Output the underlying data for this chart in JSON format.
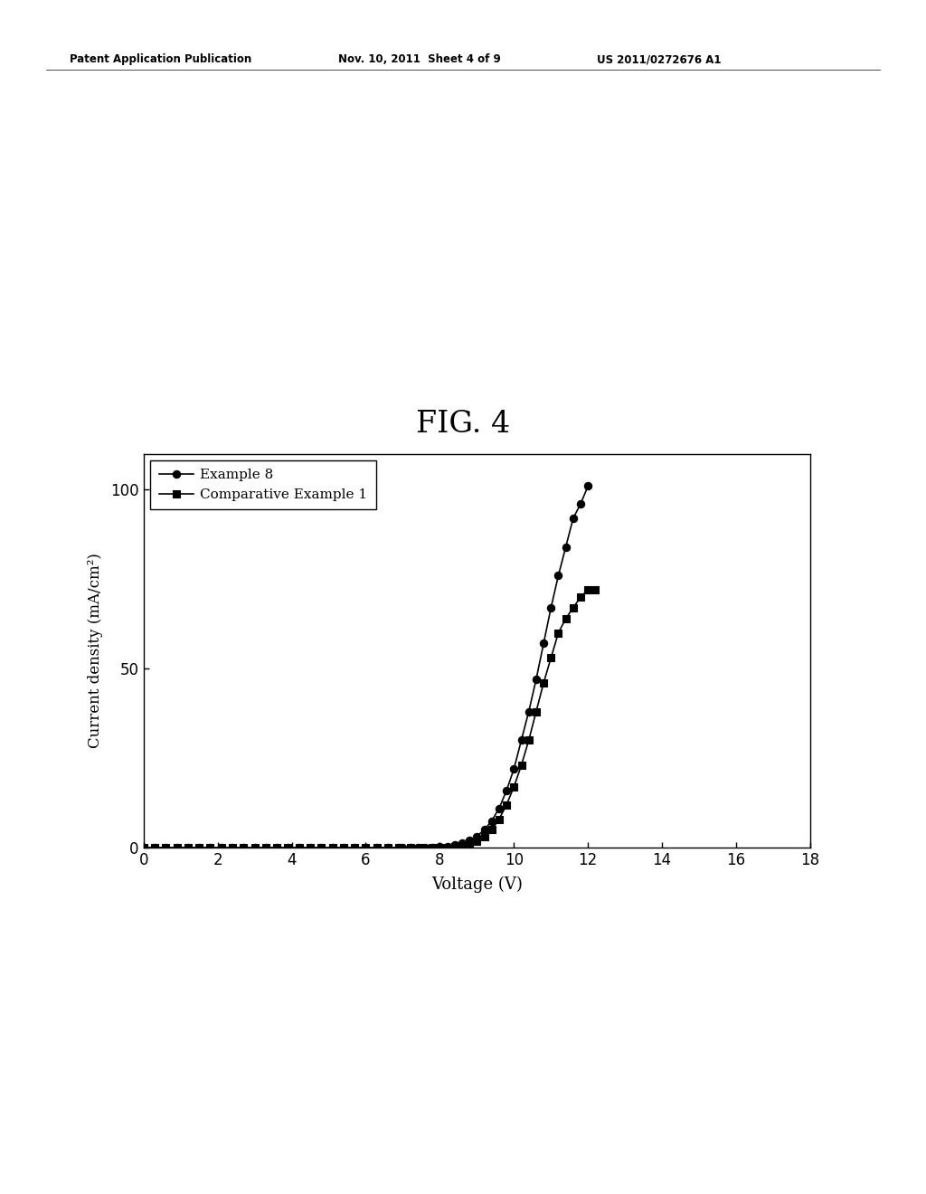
{
  "title": "FIG. 4",
  "xlabel": "Voltage (V)",
  "ylabel": "Current density (mA/cm²)",
  "xlim": [
    0,
    18
  ],
  "ylim": [
    0,
    110
  ],
  "xticks": [
    0,
    2,
    4,
    6,
    8,
    10,
    12,
    14,
    16,
    18
  ],
  "yticks": [
    0,
    50,
    100
  ],
  "background_color": "#ffffff",
  "header_left": "Patent Application Publication",
  "header_center": "Nov. 10, 2011  Sheet 4 of 9",
  "header_right": "US 2011/0272676 A1",
  "series": [
    {
      "label": "Example 8",
      "color": "#000000",
      "marker": "o",
      "x": [
        0.0,
        0.3,
        0.6,
        0.9,
        1.2,
        1.5,
        1.8,
        2.1,
        2.4,
        2.7,
        3.0,
        3.3,
        3.6,
        3.9,
        4.2,
        4.5,
        4.8,
        5.1,
        5.4,
        5.7,
        6.0,
        6.3,
        6.6,
        6.9,
        7.0,
        7.2,
        7.4,
        7.6,
        7.8,
        8.0,
        8.2,
        8.4,
        8.6,
        8.8,
        9.0,
        9.2,
        9.4,
        9.6,
        9.8,
        10.0,
        10.2,
        10.4,
        10.6,
        10.8,
        11.0,
        11.2,
        11.4,
        11.6,
        11.8,
        12.0
      ],
      "y": [
        0.0,
        0.0,
        0.0,
        0.0,
        0.0,
        0.0,
        0.0,
        0.0,
        0.0,
        0.0,
        0.0,
        0.0,
        0.0,
        0.0,
        0.0,
        0.0,
        0.0,
        0.0,
        0.0,
        0.0,
        0.0,
        0.0,
        0.0,
        0.0,
        0.0,
        0.0,
        0.02,
        0.05,
        0.1,
        0.2,
        0.4,
        0.7,
        1.2,
        2.0,
        3.2,
        5.0,
        7.5,
        11.0,
        16.0,
        22.0,
        30.0,
        38.0,
        47.0,
        57.0,
        67.0,
        76.0,
        84.0,
        92.0,
        96.0,
        101.0
      ]
    },
    {
      "label": "Comparative Example 1",
      "color": "#000000",
      "marker": "s",
      "x": [
        0.0,
        0.3,
        0.6,
        0.9,
        1.2,
        1.5,
        1.8,
        2.1,
        2.4,
        2.7,
        3.0,
        3.3,
        3.6,
        3.9,
        4.2,
        4.5,
        4.8,
        5.1,
        5.4,
        5.7,
        6.0,
        6.3,
        6.6,
        6.9,
        7.2,
        7.5,
        7.8,
        8.0,
        8.2,
        8.4,
        8.6,
        8.8,
        9.0,
        9.2,
        9.4,
        9.6,
        9.8,
        10.0,
        10.2,
        10.4,
        10.6,
        10.8,
        11.0,
        11.2,
        11.4,
        11.6,
        11.8,
        12.0,
        12.2
      ],
      "y": [
        0.0,
        0.0,
        0.0,
        0.0,
        0.0,
        0.0,
        0.0,
        0.0,
        0.0,
        0.0,
        0.0,
        0.0,
        0.0,
        0.0,
        0.0,
        0.0,
        0.0,
        0.0,
        0.0,
        0.0,
        0.0,
        0.0,
        0.0,
        0.0,
        0.0,
        0.0,
        0.02,
        0.05,
        0.1,
        0.2,
        0.5,
        1.0,
        1.8,
        3.0,
        5.0,
        8.0,
        12.0,
        17.0,
        23.0,
        30.0,
        38.0,
        46.0,
        53.0,
        60.0,
        64.0,
        67.0,
        70.0,
        72.0,
        72.0
      ]
    }
  ]
}
